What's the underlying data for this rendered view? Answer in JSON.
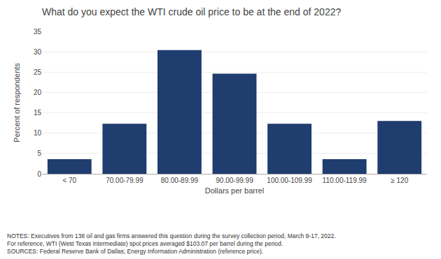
{
  "chart_data": {
    "type": "bar",
    "title": "What do you expect the WTI crude oil price to be at the end of 2022?",
    "ylabel": "Percent of respondents",
    "xlabel": "Dollars per barrel",
    "categories": [
      "< 70",
      "70.00-79.99",
      "80.00-89.99",
      "90.00-99.99",
      "100.00-109.99",
      "110.00-119.99",
      "≥ 120"
    ],
    "values": [
      3.6,
      12.3,
      30.4,
      24.6,
      12.3,
      3.6,
      13.0
    ],
    "color": "#1f3d6e",
    "ylim": [
      0,
      35
    ],
    "yticks": [
      0,
      5,
      10,
      15,
      20,
      25,
      30,
      35
    ],
    "grid": true,
    "annotations": [
      "NOTES: Executives from 138 oil and gas firms answered this question during the survey collection period, March 9-17, 2022.",
      "For reference, WTI (West Texas Intermediate) spot prices averaged $103.07 per barrel during the period.",
      "SOURCES: Federal Reserve Bank of Dallas; Energy Information Administration (reference price)."
    ]
  }
}
